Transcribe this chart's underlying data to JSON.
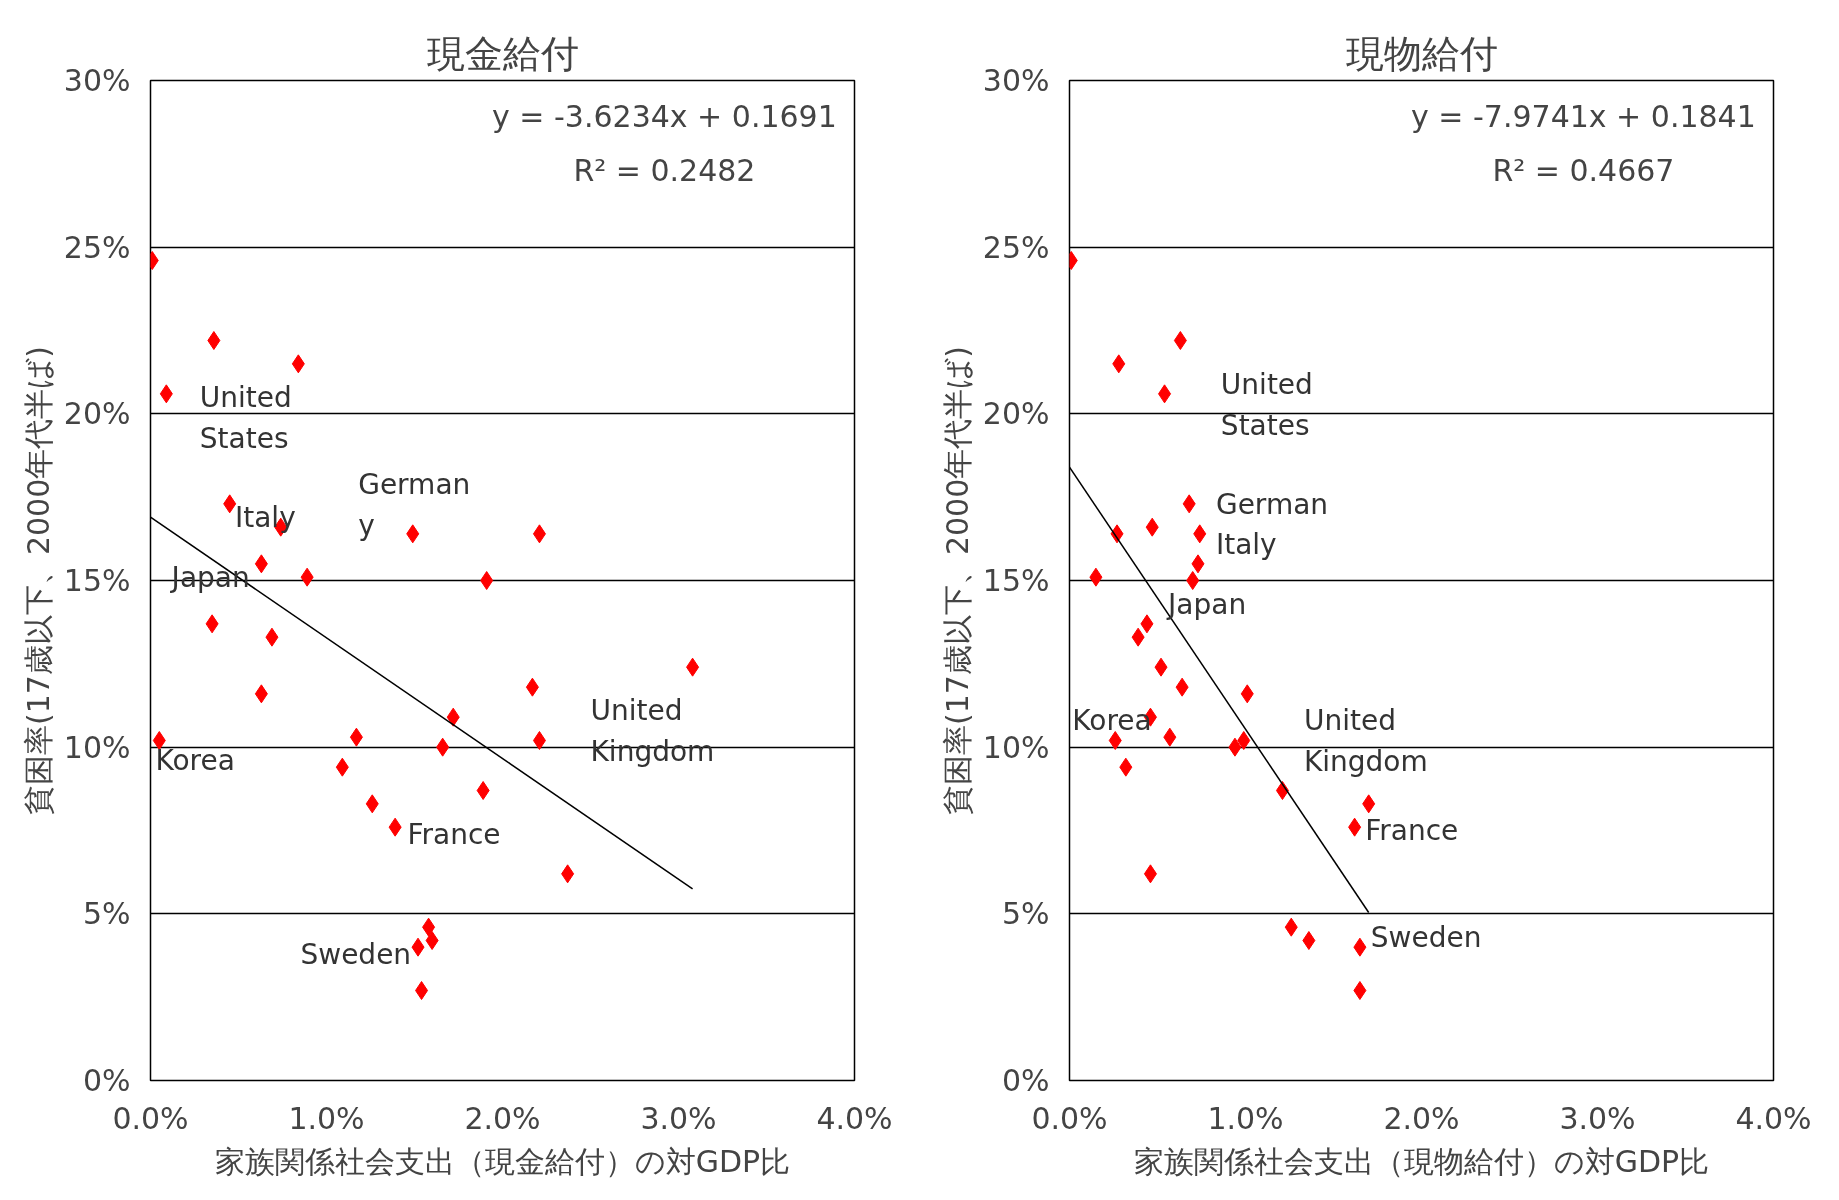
{
  "chart_data": [
    {
      "type": "scatter",
      "title": "現金給付",
      "xlabel": "家族関係社会支出（現金給付）の対GDP比",
      "ylabel": "貧困率(17歳以下、2000年代半ば)",
      "xlim": [
        0,
        4
      ],
      "ylim": [
        0,
        30
      ],
      "xticks": [
        {
          "value": 0,
          "label": "0.0%"
        },
        {
          "value": 1,
          "label": "1.0%"
        },
        {
          "value": 2,
          "label": "2.0%"
        },
        {
          "value": 3,
          "label": "3.0%"
        },
        {
          "value": 4,
          "label": "4.0%"
        }
      ],
      "yticks": [
        {
          "value": 0,
          "label": "0%"
        },
        {
          "value": 5,
          "label": "5%"
        },
        {
          "value": 10,
          "label": "10%"
        },
        {
          "value": 15,
          "label": "15%"
        },
        {
          "value": 20,
          "label": "20%"
        },
        {
          "value": 25,
          "label": "25%"
        },
        {
          "value": 30,
          "label": "30%"
        }
      ],
      "grid": "y",
      "series": [
        {
          "marker": "diamond",
          "color": "#ff0000",
          "x": [
            0.01,
            0.36,
            0.84,
            0.09,
            0.45,
            0.74,
            1.49,
            2.21,
            0.63,
            0.89,
            1.91,
            0.35,
            0.69,
            3.08,
            2.17,
            0.63,
            1.72,
            1.17,
            0.05,
            1.66,
            2.21,
            1.09,
            1.89,
            1.26,
            1.39,
            2.37,
            1.58,
            1.6,
            1.52,
            1.54
          ],
          "values": [
            24.6,
            22.2,
            21.5,
            20.6,
            17.3,
            16.6,
            16.4,
            16.4,
            15.5,
            15.1,
            15.0,
            13.7,
            13.3,
            12.4,
            11.8,
            11.6,
            10.9,
            10.3,
            10.2,
            10.0,
            10.2,
            9.4,
            8.7,
            8.3,
            7.6,
            6.2,
            4.6,
            4.2,
            4.0,
            2.7
          ]
        },
        {
          "type": "line",
          "color": "#000000",
          "x": [
            0,
            3.08
          ],
          "values": [
            16.9,
            5.75
          ]
        }
      ],
      "annotations": [
        "y = -3.6234x + 0.1691",
        "R² = 0.2482",
        "United\nStates",
        "Italy",
        "German\ny",
        "Japan",
        "Korea",
        "United\nKingdom",
        "France",
        "Sweden"
      ]
    },
    {
      "type": "scatter",
      "title": "現物給付",
      "xlabel": "家族関係社会支出（現物給付）の対GDP比",
      "ylabel": "貧困率(17歳以下、2000年代半ば)",
      "xlim": [
        0,
        4
      ],
      "ylim": [
        0,
        30
      ],
      "xticks": [
        {
          "value": 0,
          "label": "0.0%"
        },
        {
          "value": 1,
          "label": "1.0%"
        },
        {
          "value": 2,
          "label": "2.0%"
        },
        {
          "value": 3,
          "label": "3.0%"
        },
        {
          "value": 4,
          "label": "4.0%"
        }
      ],
      "yticks": [
        {
          "value": 0,
          "label": "0%"
        },
        {
          "value": 5,
          "label": "5%"
        },
        {
          "value": 10,
          "label": "10%"
        },
        {
          "value": 15,
          "label": "15%"
        },
        {
          "value": 20,
          "label": "20%"
        },
        {
          "value": 25,
          "label": "25%"
        },
        {
          "value": 30,
          "label": "30%"
        }
      ],
      "grid": "y",
      "series": [
        {
          "marker": "diamond",
          "color": "#ff0000",
          "x": [
            0.01,
            0.63,
            0.28,
            0.54,
            0.68,
            0.47,
            0.27,
            0.74,
            0.73,
            0.15,
            0.7,
            0.44,
            0.39,
            0.52,
            0.64,
            1.01,
            0.46,
            0.57,
            0.26,
            0.94,
            0.99,
            0.32,
            1.21,
            1.7,
            1.62,
            0.46,
            1.26,
            1.36,
            1.65,
            1.65
          ],
          "values": [
            24.6,
            22.2,
            21.5,
            20.6,
            17.3,
            16.6,
            16.4,
            16.4,
            15.5,
            15.1,
            15.0,
            13.7,
            13.3,
            12.4,
            11.8,
            11.6,
            10.9,
            10.3,
            10.2,
            10.0,
            10.2,
            9.4,
            8.7,
            8.3,
            7.6,
            6.2,
            4.6,
            4.2,
            4.0,
            2.7
          ]
        },
        {
          "type": "line",
          "color": "#000000",
          "x": [
            0,
            1.7
          ],
          "values": [
            18.4,
            5.04
          ]
        }
      ],
      "annotations": [
        "y = -7.9741x + 0.1841",
        "R² = 0.4667",
        "United\nStates",
        "German",
        "Italy",
        "Japan",
        "Korea",
        "United\nKingdom",
        "France",
        "Sweden"
      ]
    }
  ]
}
